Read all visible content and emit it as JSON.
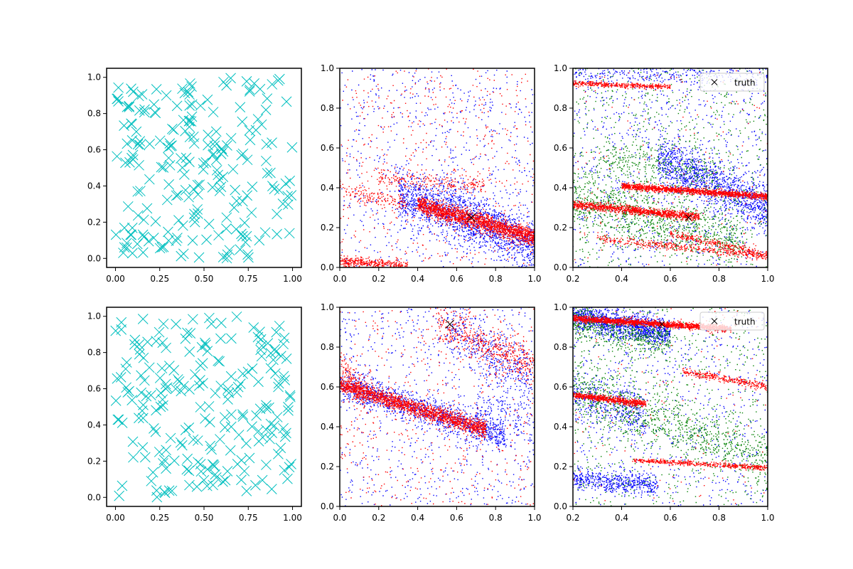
{
  "figure": {
    "background": "#ffffff"
  },
  "colors": {
    "cyan": "#00bfbf",
    "blue": "#0000ff",
    "red": "#ff0000",
    "green": "#008000",
    "black": "#000000"
  },
  "chart_data": [
    {
      "type": "scatter",
      "id": "top-left",
      "row": 0,
      "col": 0,
      "xlim": [
        -0.05,
        1.05
      ],
      "ylim": [
        -0.05,
        1.05
      ],
      "xticks": [
        0.0,
        0.25,
        0.5,
        0.75,
        1.0
      ],
      "xtick_labels": [
        "0.00",
        "0.25",
        "0.50",
        "0.75",
        "1.00"
      ],
      "yticks": [
        0.0,
        0.2,
        0.4,
        0.6,
        0.8,
        1.0
      ],
      "ytick_labels": [
        "0.0",
        "0.2",
        "0.4",
        "0.6",
        "0.8",
        "1.0"
      ],
      "grid": false,
      "legend": null,
      "series": [
        {
          "marker": "x",
          "color": "#00bfbf",
          "size": "large",
          "distribution": {
            "kind": "uniform",
            "n": 220,
            "x": [
              0.0,
              1.0
            ],
            "y": [
              0.0,
              1.0
            ],
            "seed": 11
          }
        }
      ]
    },
    {
      "type": "scatter",
      "id": "top-middle",
      "row": 0,
      "col": 1,
      "xlim": [
        0.0,
        1.0
      ],
      "ylim": [
        0.0,
        1.0
      ],
      "xticks": [
        0.0,
        0.2,
        0.4,
        0.6,
        0.8,
        1.0
      ],
      "xtick_labels": [
        "0.0",
        "0.2",
        "0.4",
        "0.6",
        "0.8",
        "1.0"
      ],
      "yticks": [
        0.0,
        0.2,
        0.4,
        0.6,
        0.8,
        1.0
      ],
      "ytick_labels": [
        "0.0",
        "0.2",
        "0.4",
        "0.6",
        "0.8",
        "1.0"
      ],
      "grid": false,
      "legend": null,
      "series": [
        {
          "marker": "dot",
          "color": "#0000ff",
          "distribution": {
            "kind": "mix",
            "seed": 21,
            "components": [
              {
                "kind": "uniform",
                "n": 700,
                "x": [
                  0.0,
                  1.0
                ],
                "y": [
                  0.0,
                  1.0
                ]
              },
              {
                "kind": "band",
                "n": 1400,
                "x": [
                  0.3,
                  1.0
                ],
                "y0": 0.48,
                "slope": -0.38,
                "spread": 0.06
              },
              {
                "kind": "band",
                "n": 250,
                "x": [
                  0.5,
                  1.0
                ],
                "y0": 0.72,
                "slope": -0.6,
                "spread": 0.05
              }
            ]
          }
        },
        {
          "marker": "dot",
          "color": "#ff0000",
          "distribution": {
            "kind": "mix",
            "seed": 22,
            "components": [
              {
                "kind": "uniform",
                "n": 500,
                "x": [
                  0.0,
                  1.0
                ],
                "y": [
                  0.0,
                  1.0
                ]
              },
              {
                "kind": "band",
                "n": 1800,
                "x": [
                  0.4,
                  1.0
                ],
                "y0": 0.43,
                "slope": -0.28,
                "spread": 0.022
              },
              {
                "kind": "band",
                "n": 350,
                "x": [
                  0.0,
                  0.35
                ],
                "y0": 0.03,
                "slope": -0.06,
                "spread": 0.012
              },
              {
                "kind": "band",
                "n": 220,
                "x": [
                  0.2,
                  0.75
                ],
                "y0": 0.45,
                "slope": -0.05,
                "spread": 0.025
              },
              {
                "kind": "band",
                "n": 160,
                "x": [
                  0.0,
                  0.35
                ],
                "y0": 0.4,
                "slope": -0.25,
                "spread": 0.02
              }
            ]
          }
        },
        {
          "marker": "x",
          "color": "#000000",
          "size": "medium",
          "points": [
            {
              "x": 0.675,
              "y": 0.25
            }
          ]
        }
      ]
    },
    {
      "type": "scatter",
      "id": "top-right",
      "row": 0,
      "col": 2,
      "xlim": [
        0.2,
        1.0
      ],
      "ylim": [
        0.0,
        1.0
      ],
      "xticks": [
        0.2,
        0.4,
        0.6,
        0.8,
        1.0
      ],
      "xtick_labels": [
        "0.2",
        "0.4",
        "0.6",
        "0.8",
        "1.0"
      ],
      "yticks": [
        0.0,
        0.2,
        0.4,
        0.6,
        0.8,
        1.0
      ],
      "ytick_labels": [
        "0.0",
        "0.2",
        "0.4",
        "0.6",
        "0.8",
        "1.0"
      ],
      "grid": false,
      "legend": {
        "placement": "upper-right",
        "entries": [
          {
            "label": "truth",
            "marker": "x",
            "color": "#000000"
          }
        ]
      },
      "series": [
        {
          "marker": "dot",
          "color": "#0000ff",
          "distribution": {
            "kind": "mix",
            "seed": 31,
            "components": [
              {
                "kind": "uniform",
                "n": 900,
                "x": [
                  0.2,
                  1.0
                ],
                "y": [
                  0.0,
                  1.0
                ]
              },
              {
                "kind": "band",
                "n": 1200,
                "x": [
                  0.55,
                  1.0
                ],
                "y0": 0.85,
                "slope": -0.55,
                "spread": 0.06
              },
              {
                "kind": "band",
                "n": 300,
                "x": [
                  0.2,
                  1.0
                ],
                "y0": 0.97,
                "slope": 0.0,
                "spread": 0.03
              }
            ]
          }
        },
        {
          "marker": "dot",
          "color": "#008000",
          "distribution": {
            "kind": "mix",
            "seed": 32,
            "components": [
              {
                "kind": "uniform",
                "n": 800,
                "x": [
                  0.2,
                  1.0
                ],
                "y": [
                  0.0,
                  1.0
                ]
              },
              {
                "kind": "band",
                "n": 900,
                "x": [
                  0.2,
                  0.9
                ],
                "y0": 0.4,
                "slope": -0.3,
                "spread": 0.07
              },
              {
                "kind": "band",
                "n": 300,
                "x": [
                  0.3,
                  0.8
                ],
                "y0": 0.62,
                "slope": -0.2,
                "spread": 0.05
              }
            ]
          }
        },
        {
          "marker": "dot",
          "color": "#ff0000",
          "distribution": {
            "kind": "mix",
            "seed": 33,
            "components": [
              {
                "kind": "band",
                "n": 1400,
                "x": [
                  0.4,
                  1.0
                ],
                "y0": 0.445,
                "slope": -0.09,
                "spread": 0.008
              },
              {
                "kind": "band",
                "n": 1100,
                "x": [
                  0.2,
                  0.72
                ],
                "y0": 0.34,
                "slope": -0.12,
                "spread": 0.01
              },
              {
                "kind": "band",
                "n": 400,
                "x": [
                  0.2,
                  0.6
                ],
                "y0": 0.935,
                "slope": -0.05,
                "spread": 0.006
              },
              {
                "kind": "band",
                "n": 300,
                "x": [
                  0.6,
                  1.0
                ],
                "y0": 0.34,
                "slope": -0.28,
                "spread": 0.01
              },
              {
                "kind": "band",
                "n": 400,
                "x": [
                  0.3,
                  1.0
                ],
                "y0": 0.185,
                "slope": -0.13,
                "spread": 0.01
              },
              {
                "kind": "uniform",
                "n": 150,
                "x": [
                  0.2,
                  1.0
                ],
                "y": [
                  0.0,
                  1.0
                ]
              }
            ]
          }
        },
        {
          "marker": "x",
          "color": "#000000",
          "size": "small",
          "points": [
            {
              "x": 0.675,
              "y": 0.25
            }
          ]
        }
      ]
    },
    {
      "type": "scatter",
      "id": "bottom-left",
      "row": 1,
      "col": 0,
      "xlim": [
        -0.05,
        1.05
      ],
      "ylim": [
        -0.05,
        1.05
      ],
      "xticks": [
        0.0,
        0.25,
        0.5,
        0.75,
        1.0
      ],
      "xtick_labels": [
        "0.00",
        "0.25",
        "0.50",
        "0.75",
        "1.00"
      ],
      "yticks": [
        0.0,
        0.2,
        0.4,
        0.6,
        0.8,
        1.0
      ],
      "ytick_labels": [
        "0.0",
        "0.2",
        "0.4",
        "0.6",
        "0.8",
        "1.0"
      ],
      "grid": false,
      "legend": null,
      "series": [
        {
          "marker": "x",
          "color": "#00bfbf",
          "size": "large",
          "distribution": {
            "kind": "uniform",
            "n": 220,
            "x": [
              0.0,
              1.0
            ],
            "y": [
              0.0,
              1.0
            ],
            "seed": 41
          }
        }
      ]
    },
    {
      "type": "scatter",
      "id": "bottom-middle",
      "row": 1,
      "col": 1,
      "xlim": [
        0.0,
        1.0
      ],
      "ylim": [
        0.0,
        1.0
      ],
      "xticks": [
        0.0,
        0.2,
        0.4,
        0.6,
        0.8,
        1.0
      ],
      "xtick_labels": [
        "0.0",
        "0.2",
        "0.4",
        "0.6",
        "0.8",
        "1.0"
      ],
      "yticks": [
        0.0,
        0.2,
        0.4,
        0.6,
        0.8,
        1.0
      ],
      "ytick_labels": [
        "0.0",
        "0.2",
        "0.4",
        "0.6",
        "0.8",
        "1.0"
      ],
      "grid": false,
      "legend": null,
      "series": [
        {
          "marker": "dot",
          "color": "#0000ff",
          "distribution": {
            "kind": "mix",
            "seed": 51,
            "components": [
              {
                "kind": "uniform",
                "n": 700,
                "x": [
                  0.0,
                  1.0
                ],
                "y": [
                  0.0,
                  1.0
                ]
              },
              {
                "kind": "band",
                "n": 1200,
                "x": [
                  0.0,
                  0.85
                ],
                "y0": 0.61,
                "slope": -0.3,
                "spread": 0.04
              },
              {
                "kind": "band",
                "n": 400,
                "x": [
                  0.55,
                  1.0
                ],
                "y0": 1.2,
                "slope": -0.55,
                "spread": 0.07
              },
              {
                "kind": "band",
                "n": 200,
                "x": [
                  0.7,
                  1.0
                ],
                "y0": 0.45,
                "slope": 0.0,
                "spread": 0.12
              }
            ]
          }
        },
        {
          "marker": "dot",
          "color": "#ff0000",
          "distribution": {
            "kind": "mix",
            "seed": 52,
            "components": [
              {
                "kind": "uniform",
                "n": 500,
                "x": [
                  0.0,
                  1.0
                ],
                "y": [
                  0.0,
                  1.0
                ]
              },
              {
                "kind": "band",
                "n": 1800,
                "x": [
                  0.0,
                  0.75
                ],
                "y0": 0.61,
                "slope": -0.3,
                "spread": 0.02
              },
              {
                "kind": "band",
                "n": 500,
                "x": [
                  0.5,
                  1.0
                ],
                "y0": 1.15,
                "slope": -0.45,
                "spread": 0.05
              },
              {
                "kind": "band",
                "n": 150,
                "x": [
                  0.0,
                  0.15
                ],
                "y0": 0.7,
                "slope": -1.0,
                "spread": 0.04
              }
            ]
          }
        },
        {
          "marker": "x",
          "color": "#000000",
          "size": "medium",
          "points": [
            {
              "x": 0.565,
              "y": 0.915
            }
          ]
        }
      ]
    },
    {
      "type": "scatter",
      "id": "bottom-right",
      "row": 1,
      "col": 2,
      "xlim": [
        0.2,
        1.0
      ],
      "ylim": [
        0.0,
        1.0
      ],
      "xticks": [
        0.2,
        0.4,
        0.6,
        0.8,
        1.0
      ],
      "xtick_labels": [
        "0.2",
        "0.4",
        "0.6",
        "0.8",
        "1.0"
      ],
      "yticks": [
        0.0,
        0.2,
        0.4,
        0.6,
        0.8,
        1.0
      ],
      "ytick_labels": [
        "0.0",
        "0.2",
        "0.4",
        "0.6",
        "0.8",
        "1.0"
      ],
      "grid": false,
      "legend": {
        "placement": "upper-right",
        "entries": [
          {
            "label": "truth",
            "marker": "x",
            "color": "#000000"
          }
        ]
      },
      "series": [
        {
          "marker": "dot",
          "color": "#0000ff",
          "distribution": {
            "kind": "mix",
            "seed": 61,
            "components": [
              {
                "kind": "band",
                "n": 1300,
                "x": [
                  0.2,
                  0.6
                ],
                "y0": 1.0,
                "slope": -0.22,
                "spread": 0.035
              },
              {
                "kind": "band",
                "n": 500,
                "x": [
                  0.2,
                  0.55
                ],
                "y0": 0.16,
                "slope": -0.1,
                "spread": 0.025
              },
              {
                "kind": "band",
                "n": 400,
                "x": [
                  0.2,
                  0.5
                ],
                "y0": 0.62,
                "slope": -0.3,
                "spread": 0.06
              },
              {
                "kind": "uniform",
                "n": 700,
                "x": [
                  0.2,
                  1.0
                ],
                "y": [
                  0.0,
                  1.0
                ]
              }
            ]
          }
        },
        {
          "marker": "dot",
          "color": "#008000",
          "distribution": {
            "kind": "mix",
            "seed": 62,
            "components": [
              {
                "kind": "band",
                "n": 900,
                "x": [
                  0.2,
                  1.0
                ],
                "y0": 0.68,
                "slope": -0.45,
                "spread": 0.07
              },
              {
                "kind": "band",
                "n": 500,
                "x": [
                  0.2,
                  0.6
                ],
                "y0": 0.98,
                "slope": -0.25,
                "spread": 0.04
              },
              {
                "kind": "uniform",
                "n": 700,
                "x": [
                  0.2,
                  1.0
                ],
                "y": [
                  0.0,
                  1.0
                ]
              }
            ]
          }
        },
        {
          "marker": "dot",
          "color": "#ff0000",
          "distribution": {
            "kind": "mix",
            "seed": 63,
            "components": [
              {
                "kind": "band",
                "n": 1600,
                "x": [
                  0.2,
                  0.85
                ],
                "y0": 0.96,
                "slope": -0.08,
                "spread": 0.008
              },
              {
                "kind": "band",
                "n": 700,
                "x": [
                  0.2,
                  0.5
                ],
                "y0": 0.59,
                "slope": -0.15,
                "spread": 0.008
              },
              {
                "kind": "band",
                "n": 500,
                "x": [
                  0.45,
                  1.0
                ],
                "y0": 0.263,
                "slope": -0.07,
                "spread": 0.006
              },
              {
                "kind": "band",
                "n": 300,
                "x": [
                  0.65,
                  1.0
                ],
                "y0": 0.82,
                "slope": -0.22,
                "spread": 0.01
              },
              {
                "kind": "uniform",
                "n": 150,
                "x": [
                  0.2,
                  1.0
                ],
                "y": [
                  0.0,
                  1.0
                ]
              }
            ]
          }
        },
        {
          "marker": "x",
          "color": "#000000",
          "size": "small",
          "points": [
            {
              "x": 0.565,
              "y": 0.915
            }
          ]
        }
      ]
    }
  ]
}
